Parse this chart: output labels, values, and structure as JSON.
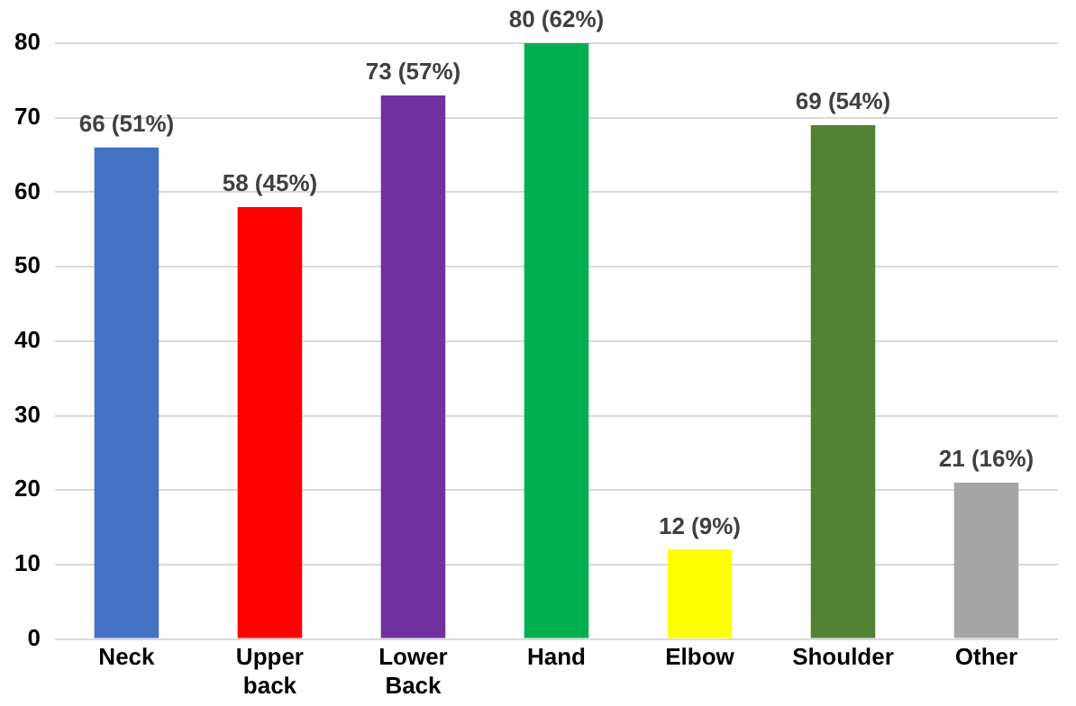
{
  "chart_data": {
    "type": "bar",
    "categories": [
      "Neck",
      "Upper back",
      "Lower Back",
      "Hand",
      "Elbow",
      "Shoulder",
      "Other"
    ],
    "values": [
      66,
      58,
      73,
      80,
      12,
      69,
      21
    ],
    "colors": [
      "#4472c4",
      "#ff0000",
      "#7030a0",
      "#00b050",
      "#ffff00",
      "#548235",
      "#a5a5a5"
    ],
    "value_labels": [
      "66 (51%)",
      "58 (45%)",
      "73 (57%)",
      "80 (62%)",
      "12 (9%)",
      "69 (54%)",
      "21 (16%)"
    ],
    "ylim": [
      0,
      80
    ],
    "yticks": [
      0,
      10,
      20,
      30,
      40,
      50,
      60,
      70,
      80
    ],
    "grid": "y",
    "legend": false
  }
}
